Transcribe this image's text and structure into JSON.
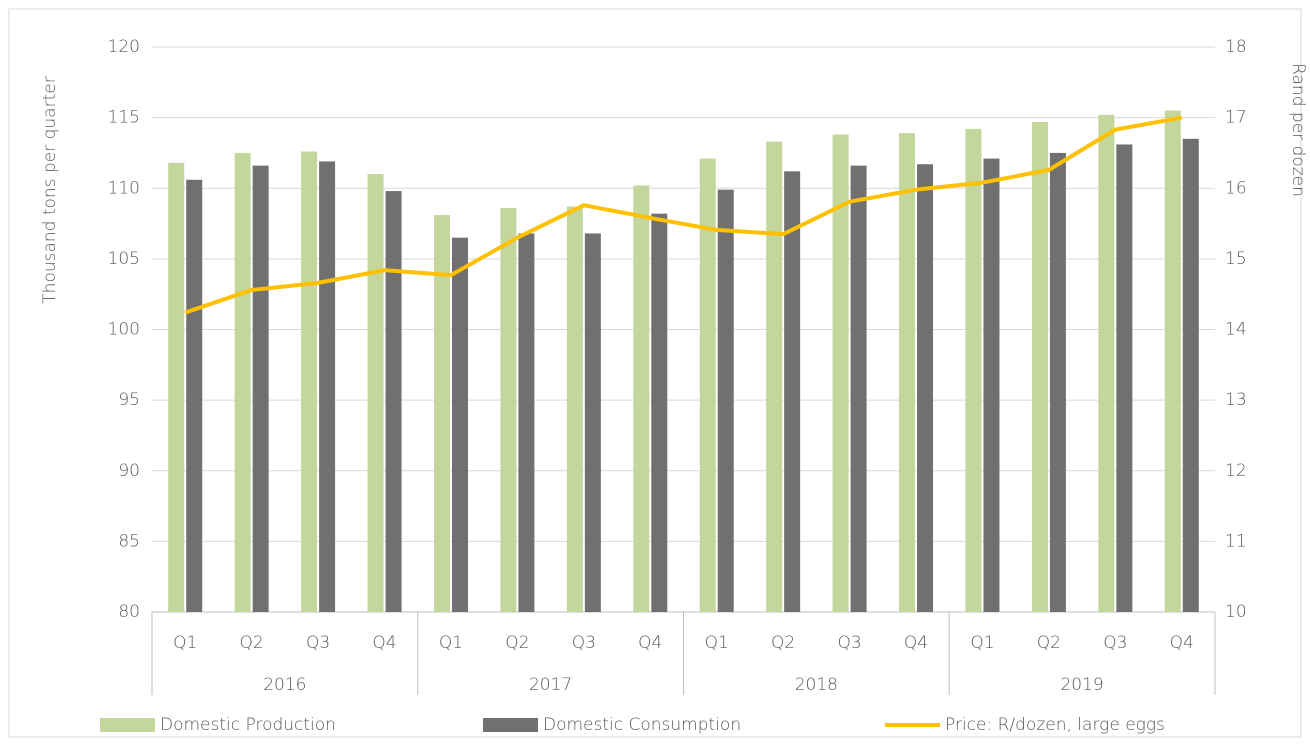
{
  "chart_data": {
    "type": "bar_line",
    "categories": [
      "Q1",
      "Q2",
      "Q3",
      "Q4",
      "Q1",
      "Q2",
      "Q3",
      "Q4",
      "Q1",
      "Q2",
      "Q3",
      "Q4",
      "Q1",
      "Q2",
      "Q3",
      "Q4"
    ],
    "groups": [
      "2016",
      "2017",
      "2018",
      "2019"
    ],
    "ylabel": "Thousand tons per quarter",
    "y2label": "Rand per dozen",
    "ylim": [
      80,
      120
    ],
    "yticks": [
      80,
      85,
      90,
      95,
      100,
      105,
      110,
      115,
      120
    ],
    "y2lim": [
      10,
      18
    ],
    "y2ticks": [
      10,
      11,
      12,
      13,
      14,
      15,
      16,
      17,
      18
    ],
    "grid": true,
    "legend": "bottom",
    "series": [
      {
        "name": "Domestic Production",
        "type": "bar",
        "color": "#c3d69b",
        "values": [
          111.8,
          112.5,
          112.6,
          111.0,
          108.1,
          108.6,
          108.7,
          110.2,
          112.1,
          113.3,
          113.8,
          113.9,
          114.2,
          114.7,
          115.2,
          115.5
        ]
      },
      {
        "name": "Domestic Consumption",
        "type": "bar",
        "color": "#707070",
        "values": [
          110.6,
          111.6,
          111.9,
          109.8,
          106.5,
          106.8,
          106.8,
          108.2,
          109.9,
          111.2,
          111.6,
          111.7,
          112.1,
          112.5,
          113.1,
          113.5
        ]
      },
      {
        "name": "Price: R/dozen, large eggs",
        "type": "line",
        "axis": "y2",
        "color": "#ffc000",
        "values": [
          14.24,
          14.56,
          14.66,
          14.84,
          14.77,
          15.3,
          15.76,
          15.58,
          15.41,
          15.35,
          15.81,
          15.98,
          16.08,
          16.26,
          16.83,
          17.0
        ]
      }
    ]
  }
}
